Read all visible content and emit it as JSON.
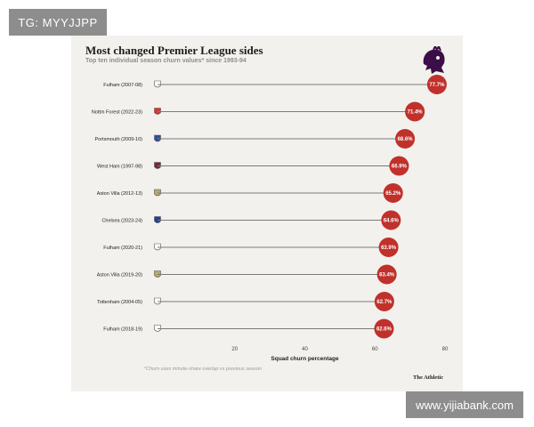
{
  "overlay": {
    "tag_text": "TG: MYYJJPP",
    "watermark_text": "www.yijiabank.com"
  },
  "colors": {
    "background": "#f3f1ed",
    "marker": "#c0312b",
    "line": "#7a7a7a",
    "overlay": "#8d8d8d"
  },
  "chart_data": {
    "type": "dot",
    "title": "Most changed Premier League sides",
    "subtitle": "Top ten individual season churn values* since 1993-94",
    "xlabel": "Squad churn percentage",
    "ylabel": "",
    "xlim": [
      0,
      80
    ],
    "xticks": [
      20,
      40,
      60,
      80
    ],
    "grid": false,
    "legend": "none",
    "categories": [
      "Fulham (2007-08)",
      "Nottm Forest (2022-23)",
      "Portsmouth (2009-10)",
      "West Ham (1997-98)",
      "Aston Villa (2012-13)",
      "Chelsea (2023-24)",
      "Fulham (2020-21)",
      "Aston Villa (2019-20)",
      "Tottenham (2004-05)",
      "Fulham (2018-19)"
    ],
    "values": [
      77.7,
      71.4,
      68.6,
      66.9,
      65.2,
      64.6,
      63.9,
      63.4,
      62.7,
      62.6
    ],
    "value_labels": [
      "77.7%",
      "71.4%",
      "68.6%",
      "66.9%",
      "65.2%",
      "64.6%",
      "63.9%",
      "63.4%",
      "62.7%",
      "62.6%"
    ],
    "badges": [
      "fulham-badge-icon",
      "nottm-forest-badge-icon",
      "portsmouth-badge-icon",
      "west-ham-badge-icon",
      "aston-villa-badge-icon",
      "chelsea-badge-icon",
      "fulham-badge-icon",
      "aston-villa-badge-icon",
      "tottenham-badge-icon",
      "fulham-badge-icon"
    ],
    "badge_colors": [
      "#ffffff",
      "#d9362b",
      "#2e4fa0",
      "#7a263a",
      "#b8a96a",
      "#1d3f9a",
      "#ffffff",
      "#b8a96a",
      "#ffffff",
      "#ffffff"
    ],
    "footnote": "*Churn uses minute-share overlap vs previous season",
    "source": "The Athletic"
  }
}
